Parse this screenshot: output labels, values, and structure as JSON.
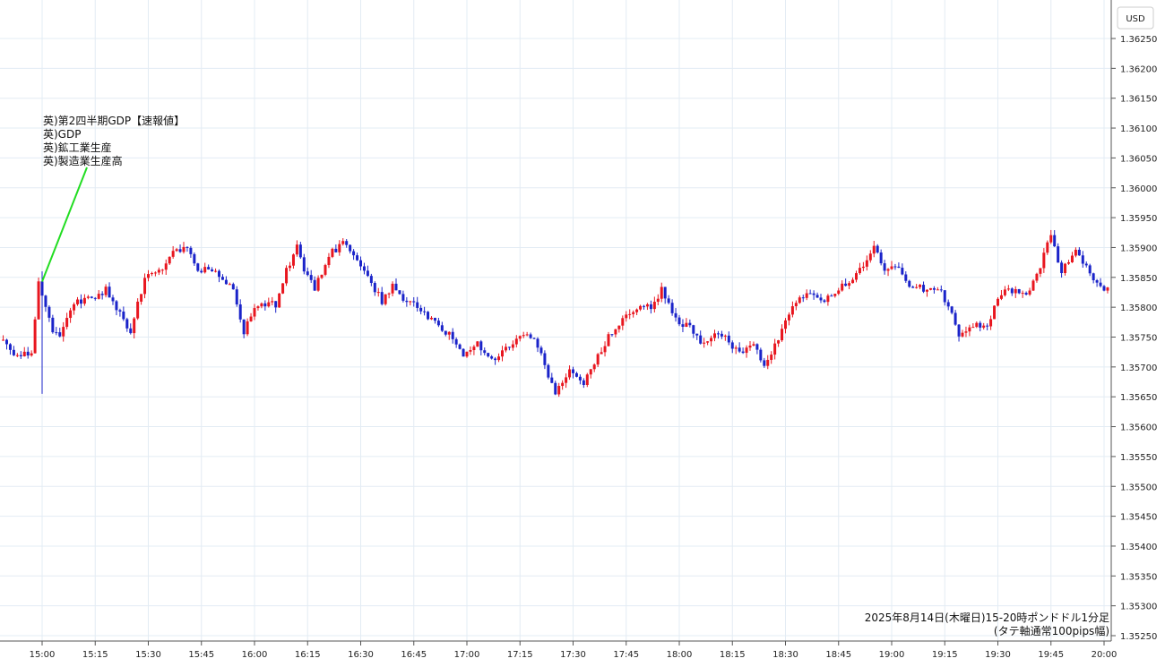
{
  "chart_data": {
    "type": "candlestick",
    "currency_label": "USD",
    "caption_lines": [
      "2025年8月14日(木曜日)15-20時ポンドドル1分足",
      "(タテ軸通常100pips幅)"
    ],
    "annotation": {
      "time": "15:00",
      "lines": [
        "英)第2四半期GDP【速報値】",
        "英)GDP",
        "英)鉱工業生産",
        "英)製造業生産高"
      ]
    },
    "y_ticks": [
      "1.36250",
      "1.36200",
      "1.36150",
      "1.36100",
      "1.36050",
      "1.36000",
      "1.35950",
      "1.35900",
      "1.35850",
      "1.35800",
      "1.35750",
      "1.35700",
      "1.35650",
      "1.35600",
      "1.35550",
      "1.35500",
      "1.35450",
      "1.35400",
      "1.35350",
      "1.35300",
      "1.35250"
    ],
    "x_ticks": [
      "15:00",
      "15:15",
      "15:30",
      "15:45",
      "16:00",
      "16:15",
      "16:30",
      "16:45",
      "17:00",
      "17:15",
      "17:30",
      "17:45",
      "18:00",
      "18:15",
      "18:30",
      "18:45",
      "19:00",
      "19:15",
      "19:30",
      "19:45",
      "20:00"
    ],
    "ylim": [
      1.3525,
      1.3627
    ],
    "x_range_minutes": [
      -11,
      301
    ],
    "up_color": "#e8161f",
    "down_color": "#1a23c9",
    "annotation_line_color": "#22dd22",
    "grid": true,
    "path": [
      {
        "t": -11,
        "p": 1.35745
      },
      {
        "t": -6,
        "p": 1.3572
      },
      {
        "t": -2,
        "p": 1.3572
      },
      {
        "t": 0,
        "p": 1.3584
      },
      {
        "t": 4,
        "p": 1.3576
      },
      {
        "t": 6,
        "p": 1.35755
      },
      {
        "t": 10,
        "p": 1.3581
      },
      {
        "t": 16,
        "p": 1.35815
      },
      {
        "t": 19,
        "p": 1.3583
      },
      {
        "t": 23,
        "p": 1.3579
      },
      {
        "t": 26,
        "p": 1.3576
      },
      {
        "t": 30,
        "p": 1.3585
      },
      {
        "t": 35,
        "p": 1.3586
      },
      {
        "t": 38,
        "p": 1.359
      },
      {
        "t": 42,
        "p": 1.35895
      },
      {
        "t": 45,
        "p": 1.35865
      },
      {
        "t": 50,
        "p": 1.3586
      },
      {
        "t": 55,
        "p": 1.3583
      },
      {
        "t": 58,
        "p": 1.3576
      },
      {
        "t": 60,
        "p": 1.3579
      },
      {
        "t": 65,
        "p": 1.3581
      },
      {
        "t": 67,
        "p": 1.358
      },
      {
        "t": 70,
        "p": 1.3586
      },
      {
        "t": 73,
        "p": 1.359
      },
      {
        "t": 75,
        "p": 1.3586
      },
      {
        "t": 78,
        "p": 1.3583
      },
      {
        "t": 82,
        "p": 1.3589
      },
      {
        "t": 86,
        "p": 1.35905
      },
      {
        "t": 89,
        "p": 1.3589
      },
      {
        "t": 93,
        "p": 1.3585
      },
      {
        "t": 97,
        "p": 1.3581
      },
      {
        "t": 100,
        "p": 1.35835
      },
      {
        "t": 104,
        "p": 1.3581
      },
      {
        "t": 107,
        "p": 1.358
      },
      {
        "t": 111,
        "p": 1.3578
      },
      {
        "t": 116,
        "p": 1.35755
      },
      {
        "t": 120,
        "p": 1.3572
      },
      {
        "t": 124,
        "p": 1.3574
      },
      {
        "t": 128,
        "p": 1.3571
      },
      {
        "t": 132,
        "p": 1.3573
      },
      {
        "t": 135,
        "p": 1.3575
      },
      {
        "t": 139,
        "p": 1.3575
      },
      {
        "t": 142,
        "p": 1.35725
      },
      {
        "t": 144,
        "p": 1.3568
      },
      {
        "t": 146,
        "p": 1.35655
      },
      {
        "t": 150,
        "p": 1.3569
      },
      {
        "t": 154,
        "p": 1.35675
      },
      {
        "t": 158,
        "p": 1.3572
      },
      {
        "t": 162,
        "p": 1.3576
      },
      {
        "t": 166,
        "p": 1.3579
      },
      {
        "t": 170,
        "p": 1.358
      },
      {
        "t": 173,
        "p": 1.358
      },
      {
        "t": 176,
        "p": 1.3583
      },
      {
        "t": 180,
        "p": 1.3578
      },
      {
        "t": 185,
        "p": 1.3576
      },
      {
        "t": 188,
        "p": 1.35735
      },
      {
        "t": 192,
        "p": 1.3576
      },
      {
        "t": 195,
        "p": 1.3574
      },
      {
        "t": 198,
        "p": 1.3572
      },
      {
        "t": 202,
        "p": 1.3574
      },
      {
        "t": 205,
        "p": 1.357
      },
      {
        "t": 209,
        "p": 1.3575
      },
      {
        "t": 214,
        "p": 1.3581
      },
      {
        "t": 218,
        "p": 1.35825
      },
      {
        "t": 222,
        "p": 1.3581
      },
      {
        "t": 226,
        "p": 1.3583
      },
      {
        "t": 230,
        "p": 1.3585
      },
      {
        "t": 233,
        "p": 1.3587
      },
      {
        "t": 236,
        "p": 1.359
      },
      {
        "t": 239,
        "p": 1.35865
      },
      {
        "t": 242,
        "p": 1.3587
      },
      {
        "t": 246,
        "p": 1.3584
      },
      {
        "t": 250,
        "p": 1.3583
      },
      {
        "t": 254,
        "p": 1.35835
      },
      {
        "t": 257,
        "p": 1.358
      },
      {
        "t": 260,
        "p": 1.35755
      },
      {
        "t": 264,
        "p": 1.3577
      },
      {
        "t": 268,
        "p": 1.35765
      },
      {
        "t": 271,
        "p": 1.35815
      },
      {
        "t": 274,
        "p": 1.3583
      },
      {
        "t": 279,
        "p": 1.3582
      },
      {
        "t": 283,
        "p": 1.3587
      },
      {
        "t": 286,
        "p": 1.3592
      },
      {
        "t": 289,
        "p": 1.3586
      },
      {
        "t": 293,
        "p": 1.35895
      },
      {
        "t": 297,
        "p": 1.35855
      },
      {
        "t": 301,
        "p": 1.3583
      }
    ],
    "spikes": [
      {
        "t": 0,
        "high": 1.3586,
        "low": 1.35655
      }
    ]
  }
}
